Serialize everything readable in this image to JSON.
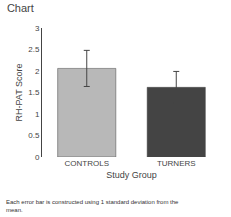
{
  "chart_data": {
    "type": "bar",
    "title": "Chart",
    "categories": [
      "CONTROLS",
      "TURNERS"
    ],
    "values": [
      2.06,
      1.62
    ],
    "errors": [
      0.42,
      0.37
    ],
    "colors": [
      "#b8b8b8",
      "#444444"
    ],
    "xlabel": "Study Group",
    "ylabel": "RH-PAT Score",
    "ylim": [
      0,
      3
    ],
    "yticks": [
      0,
      0.5,
      1,
      1.5,
      2,
      2.5,
      3
    ],
    "grid": false,
    "annotations": [
      "Each error bar is constructed using 1 standard deviation from the\nmean."
    ]
  }
}
